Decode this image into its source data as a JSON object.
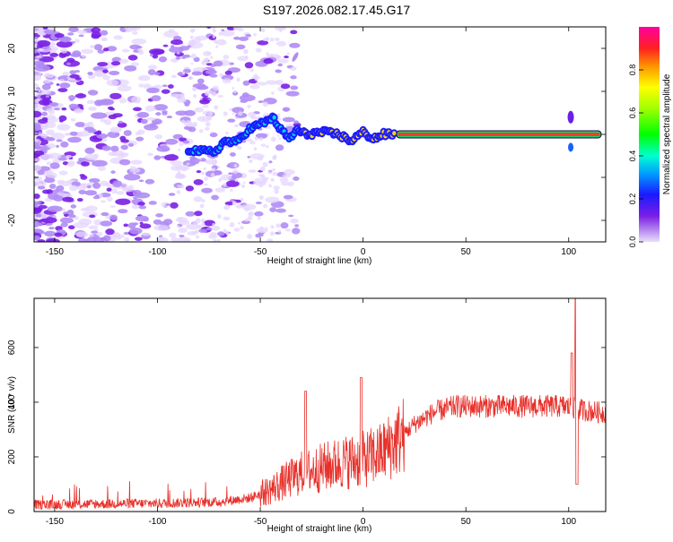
{
  "title": "S197.2026.082.17.45.G17",
  "colors": {
    "snr_line": "#e8302a",
    "trace_core": "#ff3a2a",
    "axis": "#000000",
    "blob_light": "#e6d6ff",
    "blob_mid": "#b08cf5",
    "blob_dark": "#7a1fe6"
  },
  "chart_data": [
    {
      "type": "heatmap",
      "title": "S197.2026.082.17.45.G17",
      "xlabel": "Height of straight line (km)",
      "ylabel": "Frequency (Hz)",
      "xlim": [
        -160,
        118
      ],
      "ylim": [
        -25,
        25
      ],
      "xticks": [
        -150,
        -100,
        -50,
        0,
        50,
        100
      ],
      "xtick_labels": [
        "-150",
        "-100",
        "-50",
        "0",
        "50",
        "100"
      ],
      "yticks": [
        -20,
        -10,
        0,
        10,
        20
      ],
      "ytick_labels": [
        "-20",
        "-10",
        "0",
        "10",
        "20"
      ],
      "colorbar": {
        "label": "Normalized spectral amplitude",
        "range": [
          0,
          1
        ],
        "ticks": [
          0.0,
          0.2,
          0.4,
          0.6,
          0.8
        ],
        "tick_labels": [
          "0.0",
          "0.2",
          "0.4",
          "0.6",
          "0.8"
        ],
        "stops": [
          {
            "v": 0.0,
            "color": "#e8e0f8"
          },
          {
            "v": 0.12,
            "color": "#7a1fe6"
          },
          {
            "v": 0.22,
            "color": "#1a1aff"
          },
          {
            "v": 0.32,
            "color": "#00a0ff"
          },
          {
            "v": 0.4,
            "color": "#00ffd0"
          },
          {
            "v": 0.5,
            "color": "#00ff00"
          },
          {
            "v": 0.62,
            "color": "#a0ff00"
          },
          {
            "v": 0.72,
            "color": "#ffff00"
          },
          {
            "v": 0.82,
            "color": "#ff9000"
          },
          {
            "v": 0.9,
            "color": "#ff2020"
          },
          {
            "v": 1.0,
            "color": "#ff00a0"
          }
        ]
      },
      "noise_region_km": [
        -160,
        -40
      ],
      "signal_trace": [
        {
          "x": -85,
          "y": -3.5
        },
        {
          "x": -78,
          "y": -4
        },
        {
          "x": -72,
          "y": -4
        },
        {
          "x": -67,
          "y": -1.5
        },
        {
          "x": -62,
          "y": -2
        },
        {
          "x": -56,
          "y": 1
        },
        {
          "x": -52,
          "y": 2
        },
        {
          "x": -47,
          "y": 3
        },
        {
          "x": -44,
          "y": 4
        },
        {
          "x": -40,
          "y": 1
        },
        {
          "x": -36,
          "y": -1
        },
        {
          "x": -32,
          "y": 1
        },
        {
          "x": -28,
          "y": 0
        },
        {
          "x": -20,
          "y": 0.5
        },
        {
          "x": -12,
          "y": 0
        },
        {
          "x": -6,
          "y": -1.5
        },
        {
          "x": 0,
          "y": 0.5
        },
        {
          "x": 5,
          "y": -1
        },
        {
          "x": 10,
          "y": 0
        },
        {
          "x": 16,
          "y": 0
        },
        {
          "x": 116,
          "y": 0
        }
      ],
      "steady_line": {
        "x_start": 16,
        "x_end": 116,
        "y": 0,
        "amplitude": 0.9
      }
    },
    {
      "type": "line",
      "xlabel": "Height of straight line (km)",
      "ylabel": "SNR (10 * v/v)",
      "xlim": [
        -160,
        118
      ],
      "ylim": [
        0,
        780
      ],
      "xticks": [
        -150,
        -100,
        -50,
        0,
        50,
        100
      ],
      "xtick_labels": [
        "-150",
        "-100",
        "-50",
        "0",
        "50",
        "100"
      ],
      "yticks": [
        0,
        200,
        400,
        600
      ],
      "ytick_labels": [
        "0",
        "200",
        "400",
        "600"
      ],
      "series": [
        {
          "name": "SNR",
          "baseline_points": [
            {
              "x": -160,
              "y": 25
            },
            {
              "x": -100,
              "y": 30
            },
            {
              "x": -70,
              "y": 35
            },
            {
              "x": -55,
              "y": 50
            },
            {
              "x": -45,
              "y": 80
            },
            {
              "x": -38,
              "y": 110
            },
            {
              "x": -30,
              "y": 140
            },
            {
              "x": -20,
              "y": 160
            },
            {
              "x": -10,
              "y": 180
            },
            {
              "x": 0,
              "y": 190
            },
            {
              "x": 8,
              "y": 210
            },
            {
              "x": 15,
              "y": 250
            },
            {
              "x": 25,
              "y": 320
            },
            {
              "x": 35,
              "y": 365
            },
            {
              "x": 45,
              "y": 385
            },
            {
              "x": 60,
              "y": 385
            },
            {
              "x": 80,
              "y": 385
            },
            {
              "x": 98,
              "y": 385
            },
            {
              "x": 108,
              "y": 370
            },
            {
              "x": 118,
              "y": 360
            }
          ],
          "spikes": [
            {
              "x": -28,
              "y": 440
            },
            {
              "x": -1,
              "y": 490
            },
            {
              "x": 101.5,
              "y": 580
            },
            {
              "x": 103.5,
              "y": 780
            },
            {
              "x": 104,
              "y": 100
            }
          ]
        }
      ]
    }
  ]
}
